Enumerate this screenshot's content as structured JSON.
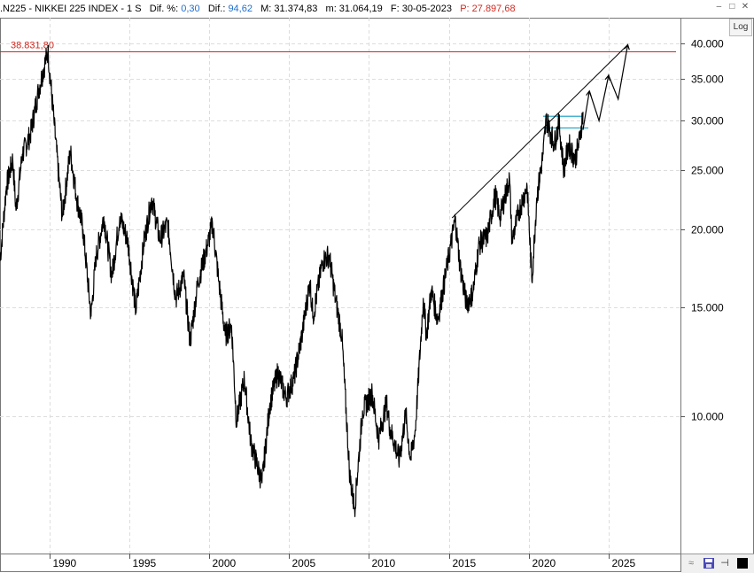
{
  "header": {
    "symbol": ".N225 - NIKKEI 225 INDEX - 1 S",
    "dif_pct_label": "Dif. %:",
    "dif_pct_value": "0,30",
    "dif_label": "Dif.:",
    "dif_value": "94,62",
    "max_label": "M: 31.374,83",
    "min_label": "m: 31.064,19",
    "date_label": "F: 30-05-2023",
    "p_label": "P: 27.897,68"
  },
  "window": {
    "minimize": "–",
    "maximize": "□",
    "close": "✕"
  },
  "log_button": "Log",
  "colors": {
    "line": "#000000",
    "ath": "#d2281e",
    "band": "#2aa7c9",
    "grid": "#dddddd",
    "accent": "#1e6fd0"
  },
  "chart_data": {
    "type": "line",
    "scale": "log",
    "x_ticks": [
      "1990",
      "1995",
      "2000",
      "2005",
      "2010",
      "2015",
      "2020",
      "2025"
    ],
    "y_ticks": [
      {
        "value": 10000,
        "label": "10.000"
      },
      {
        "value": 15000,
        "label": "15.000"
      },
      {
        "value": 20000,
        "label": "20.000"
      },
      {
        "value": 25000,
        "label": "25.000"
      },
      {
        "value": 30000,
        "label": "30.000"
      },
      {
        "value": 35000,
        "label": "35.000"
      },
      {
        "value": 40000,
        "label": "40.000"
      }
    ],
    "ylim": [
      6000,
      44000
    ],
    "xlim": [
      1986.9,
      2029.5
    ],
    "ath": {
      "value": 38831.8,
      "label": "38.831,80"
    },
    "series": [
      {
        "points": [
          [
            1986.9,
            17800
          ],
          [
            1987.3,
            23500
          ],
          [
            1987.7,
            26000
          ],
          [
            1987.9,
            21500
          ],
          [
            1988.3,
            26500
          ],
          [
            1988.8,
            28500
          ],
          [
            1989.3,
            33500
          ],
          [
            1989.9,
            38900
          ],
          [
            1990.3,
            29500
          ],
          [
            1990.8,
            21000
          ],
          [
            1991.3,
            26800
          ],
          [
            1991.7,
            22500
          ],
          [
            1992.1,
            20000
          ],
          [
            1992.6,
            14500
          ],
          [
            1992.9,
            18000
          ],
          [
            1993.4,
            21000
          ],
          [
            1993.9,
            16800
          ],
          [
            1994.4,
            21000
          ],
          [
            1994.9,
            19200
          ],
          [
            1995.4,
            14800
          ],
          [
            1995.9,
            19000
          ],
          [
            1996.4,
            22500
          ],
          [
            1996.9,
            19300
          ],
          [
            1997.4,
            20500
          ],
          [
            1997.9,
            15500
          ],
          [
            1998.4,
            16800
          ],
          [
            1998.8,
            13200
          ],
          [
            1999.3,
            16500
          ],
          [
            1999.9,
            18900
          ],
          [
            2000.2,
            20500
          ],
          [
            2000.6,
            16500
          ],
          [
            2001.0,
            13500
          ],
          [
            2001.4,
            14000
          ],
          [
            2001.7,
            9800
          ],
          [
            2002.2,
            11500
          ],
          [
            2002.6,
            9100
          ],
          [
            2003.3,
            7800
          ],
          [
            2003.8,
            10500
          ],
          [
            2004.3,
            11800
          ],
          [
            2004.8,
            10700
          ],
          [
            2005.3,
            11500
          ],
          [
            2005.8,
            13500
          ],
          [
            2006.3,
            16500
          ],
          [
            2006.5,
            14500
          ],
          [
            2007.1,
            17800
          ],
          [
            2007.5,
            18200
          ],
          [
            2007.9,
            15500
          ],
          [
            2008.3,
            13500
          ],
          [
            2008.8,
            8000
          ],
          [
            2009.1,
            7100
          ],
          [
            2009.6,
            10200
          ],
          [
            2010.2,
            10900
          ],
          [
            2010.6,
            9200
          ],
          [
            2011.1,
            10500
          ],
          [
            2011.3,
            9600
          ],
          [
            2011.9,
            8500
          ],
          [
            2012.3,
            10100
          ],
          [
            2012.6,
            8500
          ],
          [
            2012.9,
            9500
          ],
          [
            2013.4,
            15500
          ],
          [
            2013.6,
            13500
          ],
          [
            2013.9,
            16000
          ],
          [
            2014.3,
            14300
          ],
          [
            2014.9,
            17500
          ],
          [
            2015.4,
            20800
          ],
          [
            2015.7,
            17500
          ],
          [
            2016.1,
            15200
          ],
          [
            2016.5,
            15800
          ],
          [
            2016.9,
            19000
          ],
          [
            2017.4,
            19500
          ],
          [
            2017.9,
            22800
          ],
          [
            2018.2,
            21000
          ],
          [
            2018.8,
            24200
          ],
          [
            2018.95,
            19200
          ],
          [
            2019.4,
            21500
          ],
          [
            2019.9,
            23500
          ],
          [
            2020.2,
            16500
          ],
          [
            2020.5,
            22500
          ],
          [
            2020.9,
            26500
          ],
          [
            2021.1,
            30200
          ],
          [
            2021.6,
            27500
          ],
          [
            2021.9,
            29800
          ],
          [
            2022.2,
            25000
          ],
          [
            2022.5,
            27500
          ],
          [
            2022.9,
            26000
          ],
          [
            2023.2,
            28000
          ],
          [
            2023.4,
            31000
          ]
        ]
      }
    ],
    "projection": [
      [
        2023.4,
        29000
      ],
      [
        2023.8,
        33500
      ],
      [
        2024.4,
        30000
      ],
      [
        2025.0,
        35500
      ],
      [
        2025.6,
        32500
      ],
      [
        2026.2,
        39800
      ]
    ],
    "trendline": [
      [
        2015.2,
        20900
      ],
      [
        2026.2,
        39800
      ]
    ],
    "band": {
      "x": [
        2020.9,
        2023.4
      ],
      "upper": 30500,
      "lower": 29200
    }
  }
}
